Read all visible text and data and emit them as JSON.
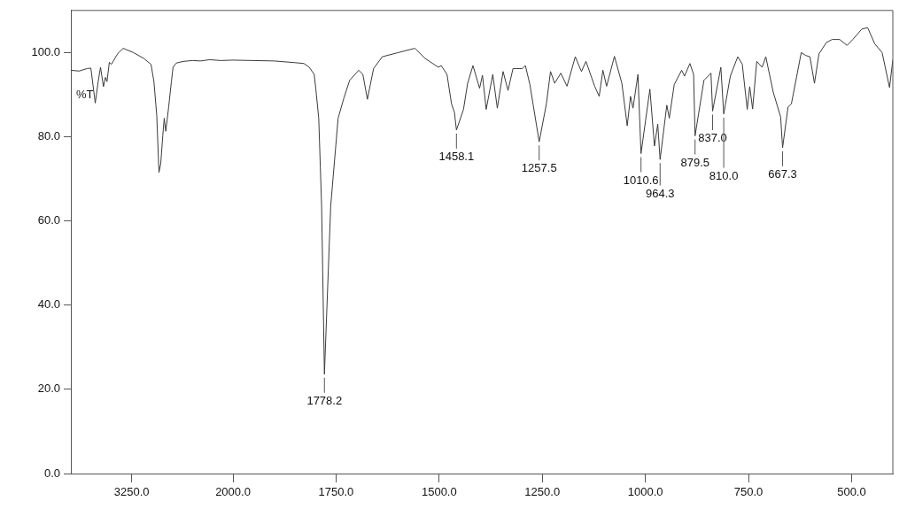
{
  "chart_data": [
    {
      "type": "line",
      "ylabel": "%T",
      "legend": false,
      "grid": false,
      "marker": "none",
      "xlim": [
        4000,
        2000
      ],
      "xticks": [
        {
          "value": 3250,
          "label": "3250.0"
        },
        {
          "value": 2000,
          "label": "2000.0"
        }
      ],
      "ylim": [
        0,
        110
      ],
      "yticks": [
        {
          "value": 0,
          "label": "0.0"
        },
        {
          "value": 20,
          "label": "20.0"
        },
        {
          "value": 40,
          "label": "40.0"
        },
        {
          "value": 60,
          "label": "60.0"
        },
        {
          "value": 80,
          "label": "80.0"
        },
        {
          "value": 100,
          "label": "100.0"
        }
      ],
      "series": [
        {
          "color": "#3a3a3a",
          "x": [
            4000,
            3900,
            3800,
            3753,
            3699,
            3663,
            3634,
            3598,
            3573,
            3554,
            3525,
            3500,
            3420,
            3355,
            3228,
            3100,
            3011,
            2975,
            2940,
            2913,
            2891,
            2866,
            2848,
            2829,
            2793,
            2760,
            2739,
            2700,
            2612,
            2500,
            2400,
            2286,
            2150,
            2000
          ],
          "values": [
            95.8,
            95.6,
            96.2,
            96.3,
            88.0,
            93.1,
            96.5,
            91.9,
            94.1,
            93.1,
            97.7,
            97.2,
            99.8,
            101.0,
            100.0,
            98.6,
            97.2,
            93.1,
            85.0,
            71.5,
            73.6,
            80.2,
            84.4,
            81.3,
            87.1,
            93.0,
            96.5,
            97.5,
            97.9,
            98.1,
            98.0,
            98.3,
            98.1,
            98.2
          ]
        }
      ]
    },
    {
      "type": "line",
      "legend": false,
      "grid": false,
      "marker": "none",
      "tick_labels": "x",
      "xlim": [
        2000,
        400
      ],
      "xticks": [
        {
          "value": 1750,
          "label": "1750.0"
        },
        {
          "value": 1500,
          "label": "1500.0"
        },
        {
          "value": 1250,
          "label": "1250.0"
        },
        {
          "value": 1000,
          "label": "1000.0"
        },
        {
          "value": 750,
          "label": "750.0"
        },
        {
          "value": 500,
          "label": "500.0"
        }
      ],
      "ylim": [
        0,
        110
      ],
      "series": [
        {
          "color": "#3a3a3a",
          "x": [
            2000,
            1900,
            1850,
            1828,
            1815,
            1803,
            1799,
            1792,
            1785,
            1778.2,
            1763,
            1745,
            1731,
            1717,
            1695,
            1685,
            1674,
            1659,
            1638,
            1599,
            1559,
            1534,
            1502,
            1495,
            1481,
            1470,
            1463,
            1458.1,
            1441,
            1431,
            1418,
            1402,
            1395,
            1386,
            1370,
            1359,
            1345,
            1333,
            1321,
            1298,
            1291,
            1280,
            1257.5,
            1240,
            1230,
            1220,
            1205,
            1190,
            1170,
            1155,
            1144,
            1123,
            1112,
            1103,
            1094,
            1075,
            1057,
            1044,
            1036,
            1030,
            1018,
            1010.6,
            989,
            978,
            970,
            964.3,
            948,
            942,
            930,
            912,
            905,
            892,
            883,
            879.5,
            858,
            841,
            837,
            817,
            810,
            794,
            776,
            765,
            753,
            747,
            740,
            730,
            717,
            708,
            690,
            672,
            667.3,
            654,
            646,
            622,
            611,
            601,
            590,
            579,
            561,
            547,
            529,
            511,
            497,
            475,
            461,
            444,
            426,
            408,
            400
          ],
          "values": [
            98.2,
            98.0,
            97.6,
            97.4,
            96.5,
            94.8,
            91.3,
            84.4,
            63.5,
            23.6,
            63.5,
            84.4,
            89.2,
            93.4,
            95.8,
            94.8,
            88.9,
            96.2,
            99.0,
            100.0,
            101.0,
            98.6,
            96.5,
            96.9,
            94.8,
            87.8,
            85.8,
            81.6,
            86.5,
            92.7,
            96.9,
            91.5,
            94.6,
            86.5,
            94.8,
            86.8,
            95.5,
            91.0,
            96.2,
            96.2,
            96.9,
            92.4,
            78.8,
            87.8,
            95.5,
            92.7,
            95.1,
            92.0,
            99.0,
            95.5,
            97.9,
            92.0,
            89.6,
            95.8,
            92.0,
            99.1,
            92.7,
            82.6,
            89.6,
            86.8,
            94.8,
            76.0,
            91.3,
            77.8,
            83.0,
            74.6,
            87.5,
            84.4,
            92.4,
            95.8,
            94.4,
            97.4,
            94.8,
            80.2,
            93.4,
            95.1,
            86.1,
            96.5,
            85.4,
            94.4,
            99.0,
            97.2,
            86.5,
            91.9,
            86.6,
            97.9,
            96.5,
            99.0,
            90.6,
            84.7,
            77.4,
            87.1,
            87.8,
            100.0,
            99.3,
            99.0,
            92.7,
            99.7,
            102.4,
            103.1,
            103.1,
            101.7,
            103.1,
            105.6,
            105.9,
            102.1,
            100.0,
            91.7,
            98.3
          ]
        }
      ],
      "annotations": [
        {
          "text": "1778.2",
          "x": 1778.2,
          "y": 23.6
        },
        {
          "text": "1458.1",
          "x": 1458.1,
          "y": 81.6
        },
        {
          "text": "1257.5",
          "x": 1257.5,
          "y": 78.8
        },
        {
          "text": "1010.6",
          "x": 1010.6,
          "y": 76.0
        },
        {
          "text": "964.3",
          "x": 964.3,
          "y": 74.6
        },
        {
          "text": "879.5",
          "x": 879.5,
          "y": 80.2
        },
        {
          "text": "837.0",
          "x": 837.0,
          "y": 86.1
        },
        {
          "text": "810.0",
          "x": 810.0,
          "y": 85.4
        },
        {
          "text": "667.3",
          "x": 667.3,
          "y": 77.4
        }
      ]
    }
  ]
}
